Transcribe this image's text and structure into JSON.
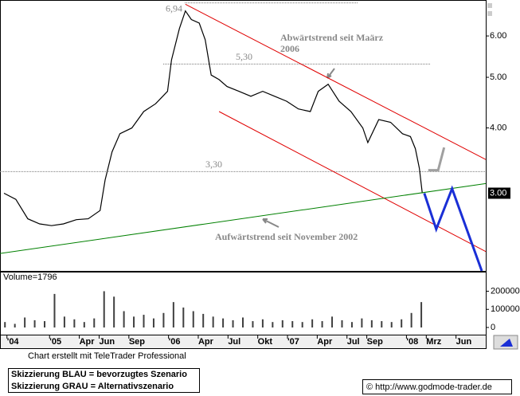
{
  "chart_data": [
    {
      "type": "line",
      "log_scale": true,
      "xlim": [
        -5,
        44
      ],
      "ylim": [
        2.13,
        7.03
      ],
      "xticks": [
        {
          "value": -4.3,
          "label": "'04"
        },
        {
          "value": 0,
          "label": "'05"
        },
        {
          "value": 3,
          "label": "Apr"
        },
        {
          "value": 5,
          "label": "Jun"
        },
        {
          "value": 8,
          "label": "Sep"
        },
        {
          "value": 12,
          "label": "'06"
        },
        {
          "value": 15,
          "label": "Apr"
        },
        {
          "value": 18,
          "label": "Jul"
        },
        {
          "value": 21,
          "label": "Okt"
        },
        {
          "value": 24,
          "label": "'07"
        },
        {
          "value": 27,
          "label": "Apr"
        },
        {
          "value": 30,
          "label": "Jul"
        },
        {
          "value": 32,
          "label": "Sep"
        },
        {
          "value": 36,
          "label": "'08"
        },
        {
          "value": 38,
          "label": "Mrz"
        },
        {
          "value": 41,
          "label": "Jun"
        }
      ],
      "yticks": [
        {
          "value": 6,
          "label": "6.00"
        },
        {
          "value": 5,
          "label": "5.00"
        },
        {
          "value": 4,
          "label": "4.00"
        }
      ],
      "last_price": {
        "value": 3.0,
        "label": "3.00"
      },
      "levels": [
        {
          "value": 6.94,
          "label": "6,94"
        },
        {
          "value": 5.3,
          "label": "5,30"
        },
        {
          "value": 3.3,
          "label": "3,30"
        }
      ],
      "annotations": [
        "Abwärtstrend seit Maärz",
        "2006",
        "Aufwärtstrend seit November 2002"
      ],
      "series": [
        {
          "color": "#000000",
          "x": [
            -4.6,
            -3.4,
            -2.2,
            -1.0,
            0.2,
            1.4,
            2.7,
            3.9,
            5.1,
            5.6,
            6.3,
            7.1,
            8.3,
            9.5,
            10.7,
            11.9,
            12.3,
            13.1,
            13.7,
            14.3,
            15.1,
            15.7,
            16.3,
            17.1,
            17.9,
            19.1,
            20.3,
            21.5,
            22.7,
            23.9,
            25.1,
            26.3,
            27.1,
            28.1,
            29.2,
            30.4,
            31.6,
            32.1,
            33.2,
            34.4,
            35.6,
            36.4,
            36.9,
            37.3,
            37.6
          ],
          "values": [
            3.0,
            2.92,
            2.68,
            2.62,
            2.6,
            2.62,
            2.67,
            2.68,
            2.78,
            3.18,
            3.6,
            3.9,
            4.0,
            4.3,
            4.45,
            4.7,
            5.4,
            6.2,
            6.7,
            6.45,
            6.35,
            5.9,
            5.05,
            4.95,
            4.8,
            4.7,
            4.6,
            4.7,
            4.6,
            4.5,
            4.35,
            4.3,
            4.7,
            4.85,
            4.5,
            4.3,
            4.0,
            3.75,
            4.15,
            4.1,
            3.9,
            3.85,
            3.65,
            3.35,
            3.0
          ]
        },
        {
          "color": "#e00000",
          "x": [
            13.7,
            44
          ],
          "values": [
            6.9,
            3.48
          ]
        },
        {
          "color": "#e00000",
          "x": [
            17.1,
            44
          ],
          "values": [
            4.3,
            2.32
          ]
        },
        {
          "color": "#008000",
          "x": [
            -5,
            44
          ],
          "values": [
            2.3,
            3.13
          ]
        },
        {
          "color": "#1a2fd6",
          "x": [
            37.8,
            39.0,
            40.6,
            43.6
          ],
          "values": [
            3.0,
            2.56,
            3.06,
            2.13
          ]
        },
        {
          "color": "#a0a0a0",
          "x": [
            38.2,
            39.2,
            39.8
          ],
          "values": [
            3.32,
            3.32,
            3.67
          ]
        }
      ]
    },
    {
      "type": "bar",
      "title": "Volume=1796",
      "color": "#404040",
      "xlim": [
        -5,
        44
      ],
      "ylim": [
        0,
        290000
      ],
      "yticks": [
        {
          "value": 0,
          "label": "0"
        },
        {
          "value": 100000,
          "label": "100000"
        },
        {
          "value": 200000,
          "label": "200000"
        }
      ],
      "x": [
        -4.5,
        -3.5,
        -2.5,
        -1.5,
        -0.5,
        0.5,
        1.5,
        2.5,
        3.5,
        4.5,
        5.5,
        6.5,
        7.5,
        8.5,
        9.5,
        10.5,
        11.5,
        12.5,
        13.5,
        14.5,
        15.5,
        16.5,
        17.5,
        18.5,
        19.5,
        20.5,
        21.5,
        22.5,
        23.5,
        24.5,
        25.5,
        26.5,
        27.5,
        28.5,
        29.5,
        30.5,
        31.5,
        32.5,
        33.5,
        34.5,
        35.5,
        36.5,
        37.5
      ],
      "values": [
        30000,
        20000,
        55000,
        40000,
        35000,
        185000,
        60000,
        45000,
        30000,
        50000,
        200000,
        170000,
        90000,
        60000,
        70000,
        50000,
        80000,
        140000,
        110000,
        90000,
        75000,
        60000,
        50000,
        40000,
        55000,
        35000,
        45000,
        30000,
        40000,
        35000,
        30000,
        45000,
        35000,
        60000,
        40000,
        30000,
        50000,
        40000,
        35000,
        30000,
        45000,
        80000,
        140000
      ]
    }
  ],
  "footer": {
    "credit": "Chart erstellt mit TeleTrader Professional",
    "legend_lines": [
      "Skizzierung BLAU = bevorzugtes Szenario",
      "Skizzierung GRAU = Alternativszenario"
    ],
    "copyright": "© http://www.godmode-trader.de"
  }
}
